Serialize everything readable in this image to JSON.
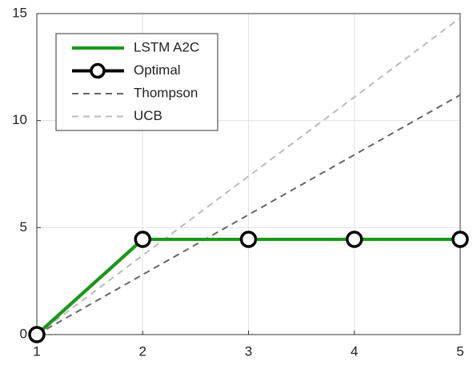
{
  "chart_data": {
    "type": "line",
    "x": [
      1,
      2,
      3,
      4,
      5
    ],
    "series": [
      {
        "name": "LSTM A2C",
        "color": "#189a18",
        "linestyle": "solid",
        "values": [
          0,
          4.45,
          4.45,
          4.45,
          4.45
        ]
      },
      {
        "name": "Optimal",
        "color": "#000000",
        "linestyle": "solid",
        "marker": "o",
        "values": [
          0,
          4.45,
          4.45,
          4.45,
          4.45
        ]
      },
      {
        "name": "Thompson",
        "color": "#666666",
        "linestyle": "dashed",
        "values": [
          0,
          2.8,
          5.6,
          8.4,
          11.2
        ]
      },
      {
        "name": "UCB",
        "color": "#bbbbbb",
        "linestyle": "dashed",
        "values": [
          0,
          3.7,
          7.4,
          11.1,
          14.8
        ]
      }
    ],
    "xlim": [
      1,
      5
    ],
    "xticks": [
      1,
      2,
      3,
      4,
      5
    ],
    "ylim": [
      0,
      15
    ],
    "yticks": [
      0,
      5,
      10,
      15
    ],
    "grid": true,
    "legend": "upper-left"
  }
}
